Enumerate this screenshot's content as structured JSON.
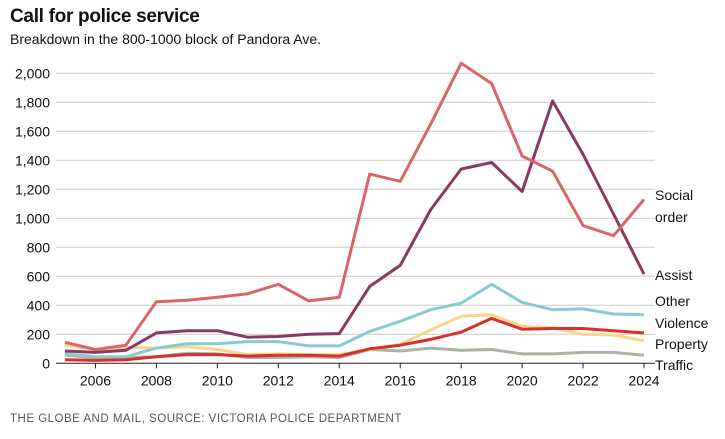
{
  "title": "Call for police service",
  "subtitle": "Breakdown in the 800-1000 block of Pandora Ave.",
  "source": "THE GLOBE AND MAIL, SOURCE: VICTORIA POLICE DEPARTMENT",
  "chart_data": {
    "type": "line",
    "title": "Call for police service",
    "subtitle": "Breakdown in the 800-1000 block of Pandora Ave.",
    "xlabel": "",
    "ylabel": "",
    "xlim": [
      2005,
      2024
    ],
    "ylim": [
      0,
      2000
    ],
    "grid": true,
    "legend": "right-end labels",
    "x": [
      2005,
      2006,
      2007,
      2008,
      2009,
      2010,
      2011,
      2012,
      2013,
      2014,
      2015,
      2016,
      2017,
      2018,
      2019,
      2020,
      2021,
      2022,
      2023,
      2024
    ],
    "x_ticks": [
      2006,
      2008,
      2010,
      2012,
      2014,
      2016,
      2018,
      2020,
      2022,
      2024
    ],
    "x_tick_labels": [
      "2006",
      "2008",
      "2010",
      "2012",
      "2014",
      "2016",
      "2018",
      "2020",
      "2022",
      "2024"
    ],
    "y_ticks": [
      0,
      200,
      400,
      600,
      800,
      1000,
      1200,
      1400,
      1600,
      1800,
      2000
    ],
    "y_tick_labels": [
      "0",
      "200",
      "400",
      "600",
      "800",
      "1,000",
      "1,200",
      "1,400",
      "1,600",
      "1,800",
      "2,000"
    ],
    "series": [
      {
        "name": "Traffic",
        "color": "#a9b4a3",
        "values": [
          55,
          40,
          40,
          45,
          70,
          65,
          40,
          40,
          45,
          40,
          95,
          85,
          105,
          90,
          95,
          65,
          65,
          75,
          75,
          55
        ]
      },
      {
        "name": "Property",
        "color": "#fbd58c",
        "values": [
          125,
          95,
          110,
          105,
          115,
          95,
          60,
          65,
          60,
          60,
          95,
          130,
          230,
          325,
          335,
          255,
          245,
          200,
          195,
          155
        ]
      },
      {
        "name": "Other",
        "color": "#87cbd1",
        "values": [
          65,
          45,
          45,
          105,
          135,
          135,
          150,
          150,
          120,
          120,
          220,
          290,
          370,
          415,
          545,
          420,
          370,
          375,
          340,
          335
        ]
      },
      {
        "name": "Violence",
        "color": "#d8302b",
        "values": [
          25,
          20,
          25,
          45,
          60,
          60,
          50,
          55,
          55,
          50,
          100,
          125,
          165,
          215,
          310,
          235,
          240,
          240,
          225,
          210
        ]
      },
      {
        "name": "Assist",
        "color": "#8a3a62",
        "values": [
          85,
          75,
          90,
          210,
          225,
          225,
          180,
          185,
          200,
          205,
          530,
          675,
          1060,
          1340,
          1385,
          1185,
          1810,
          1440,
          1030,
          615
        ]
      },
      {
        "name": "Social order",
        "color": "#d9656a",
        "values": [
          145,
          95,
          125,
          425,
          435,
          455,
          480,
          545,
          430,
          455,
          1305,
          1255,
          1650,
          2070,
          1930,
          1430,
          1325,
          950,
          880,
          1130
        ]
      }
    ]
  }
}
